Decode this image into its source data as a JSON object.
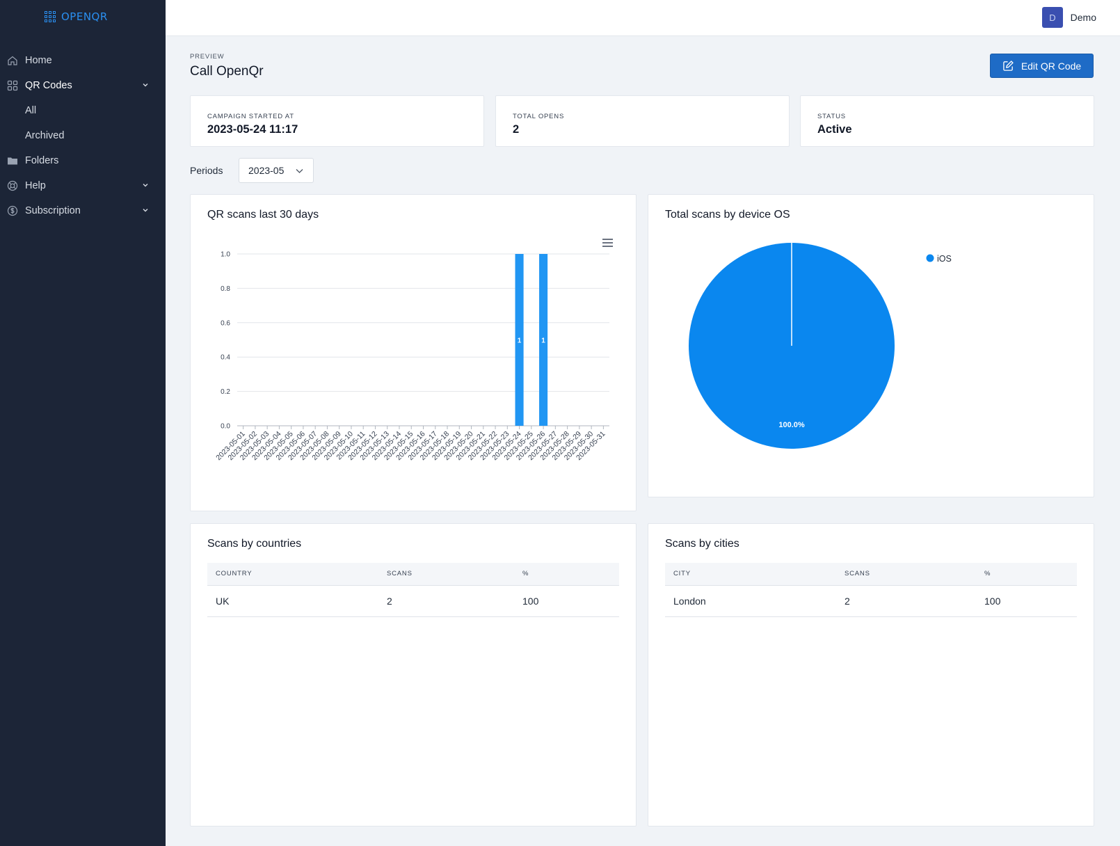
{
  "brand": {
    "name": "OPENQR"
  },
  "sidebar": {
    "items": [
      {
        "label": "Home",
        "icon": "home-icon"
      },
      {
        "label": "QR Codes",
        "icon": "grid-icon",
        "expanded": true
      },
      {
        "label": "All"
      },
      {
        "label": "Archived"
      },
      {
        "label": "Folders",
        "icon": "folder-icon"
      },
      {
        "label": "Help",
        "icon": "lifebuoy-icon"
      },
      {
        "label": "Subscription",
        "icon": "dollar-icon"
      }
    ]
  },
  "topbar": {
    "avatar_initial": "D",
    "user_name": "Demo"
  },
  "header": {
    "eyebrow": "PREVIEW",
    "title": "Call OpenQr",
    "edit_label": "Edit QR Code"
  },
  "stats": [
    {
      "label": "CAMPAIGN STARTED AT",
      "value": "2023-05-24 11:17"
    },
    {
      "label": "TOTAL OPENS",
      "value": "2"
    },
    {
      "label": "STATUS",
      "value": "Active"
    }
  ],
  "periods": {
    "label": "Periods",
    "selected": "2023-05"
  },
  "bar_card": {
    "title": "QR scans last 30 days"
  },
  "pie_card": {
    "title": "Total scans by device OS"
  },
  "countries": {
    "title": "Scans by countries",
    "columns": [
      "COUNTRY",
      "SCANS",
      "%"
    ],
    "rows": [
      [
        "UK",
        "2",
        "100"
      ]
    ]
  },
  "cities": {
    "title": "Scans by cities",
    "columns": [
      "CITY",
      "SCANS",
      "%"
    ],
    "rows": [
      [
        "London",
        "2",
        "100"
      ]
    ]
  },
  "colors": {
    "sidebar": "#1c2537",
    "accent": "#1e6bc6",
    "bar": "#2196f3",
    "pie": "#0a87ef"
  },
  "chart_data": [
    {
      "type": "bar",
      "title": "QR scans last 30 days",
      "categories": [
        "2023-05-01",
        "2023-05-02",
        "2023-05-03",
        "2023-05-04",
        "2023-05-05",
        "2023-05-06",
        "2023-05-07",
        "2023-05-08",
        "2023-05-09",
        "2023-05-10",
        "2023-05-11",
        "2023-05-12",
        "2023-05-13",
        "2023-05-14",
        "2023-05-15",
        "2023-05-16",
        "2023-05-17",
        "2023-05-18",
        "2023-05-19",
        "2023-05-20",
        "2023-05-21",
        "2023-05-22",
        "2023-05-23",
        "2023-05-24",
        "2023-05-25",
        "2023-05-26",
        "2023-05-27",
        "2023-05-28",
        "2023-05-29",
        "2023-05-30",
        "2023-05-31"
      ],
      "values": [
        0,
        0,
        0,
        0,
        0,
        0,
        0,
        0,
        0,
        0,
        0,
        0,
        0,
        0,
        0,
        0,
        0,
        0,
        0,
        0,
        0,
        0,
        0,
        1,
        0,
        1,
        0,
        0,
        0,
        0,
        0
      ],
      "yticks": [
        "0.0",
        "0.2",
        "0.4",
        "0.6",
        "0.8",
        "1.0"
      ],
      "ylim": [
        0,
        1
      ],
      "grid": true
    },
    {
      "type": "pie",
      "title": "Total scans by device OS",
      "labels": [
        "iOS"
      ],
      "values": [
        100
      ],
      "value_labels": [
        "100.0%"
      ],
      "legend": "top-right"
    }
  ]
}
